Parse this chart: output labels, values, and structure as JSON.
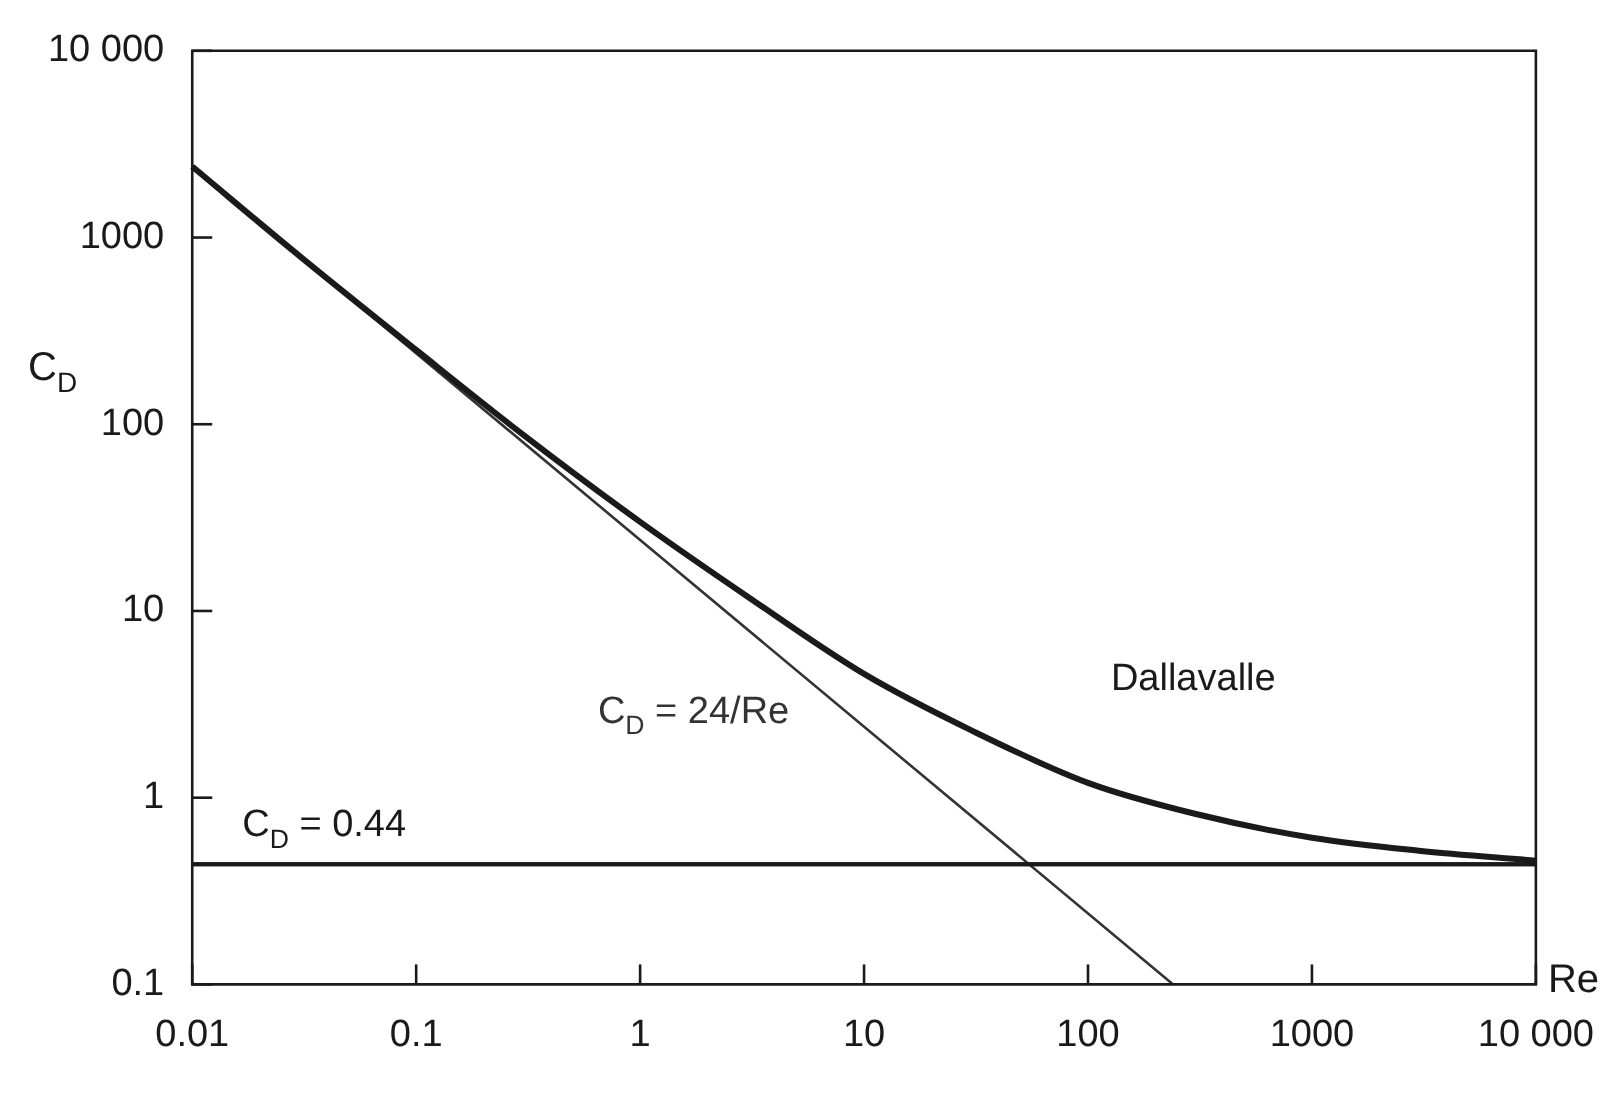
{
  "chart_data": {
    "type": "line",
    "log": "xy",
    "xlabel": "Re",
    "ylabel": "C$_{D}$",
    "xlim": [
      0.01,
      10000
    ],
    "xticks": [
      0.01,
      0.1,
      1,
      10,
      100,
      1000,
      {
        "value": 10000,
        "label": "10 000"
      }
    ],
    "ylim": [
      0.1,
      10000
    ],
    "yticks": [
      0.1,
      1,
      10,
      100,
      1000,
      {
        "value": 10000,
        "label": "10 000"
      }
    ],
    "grid": false,
    "legend": false,
    "marker": "none",
    "line_style": "solid",
    "series": [
      {
        "name": "Dallavalle",
        "color": "#1a1a1a",
        "x": [
          0.01,
          0.03,
          0.1,
          0.3,
          1,
          3,
          10,
          30,
          100,
          300,
          1000,
          3000,
          10000
        ],
        "values": [
          2400,
          800,
          250,
          88,
          30,
          12,
          4.6,
          2.3,
          1.2,
          0.82,
          0.61,
          0.52,
          0.46
        ]
      },
      {
        "name": "C$_{D}$ = 24/Re",
        "color": "#333333",
        "x": [
          0.01,
          240
        ],
        "values": [
          2400,
          0.1
        ]
      }
    ],
    "ref_lines": [
      {
        "axis": "y",
        "value": 0.44,
        "label": "C$_{D}$ = 0.44",
        "color": "#1a1a1a"
      }
    ]
  }
}
